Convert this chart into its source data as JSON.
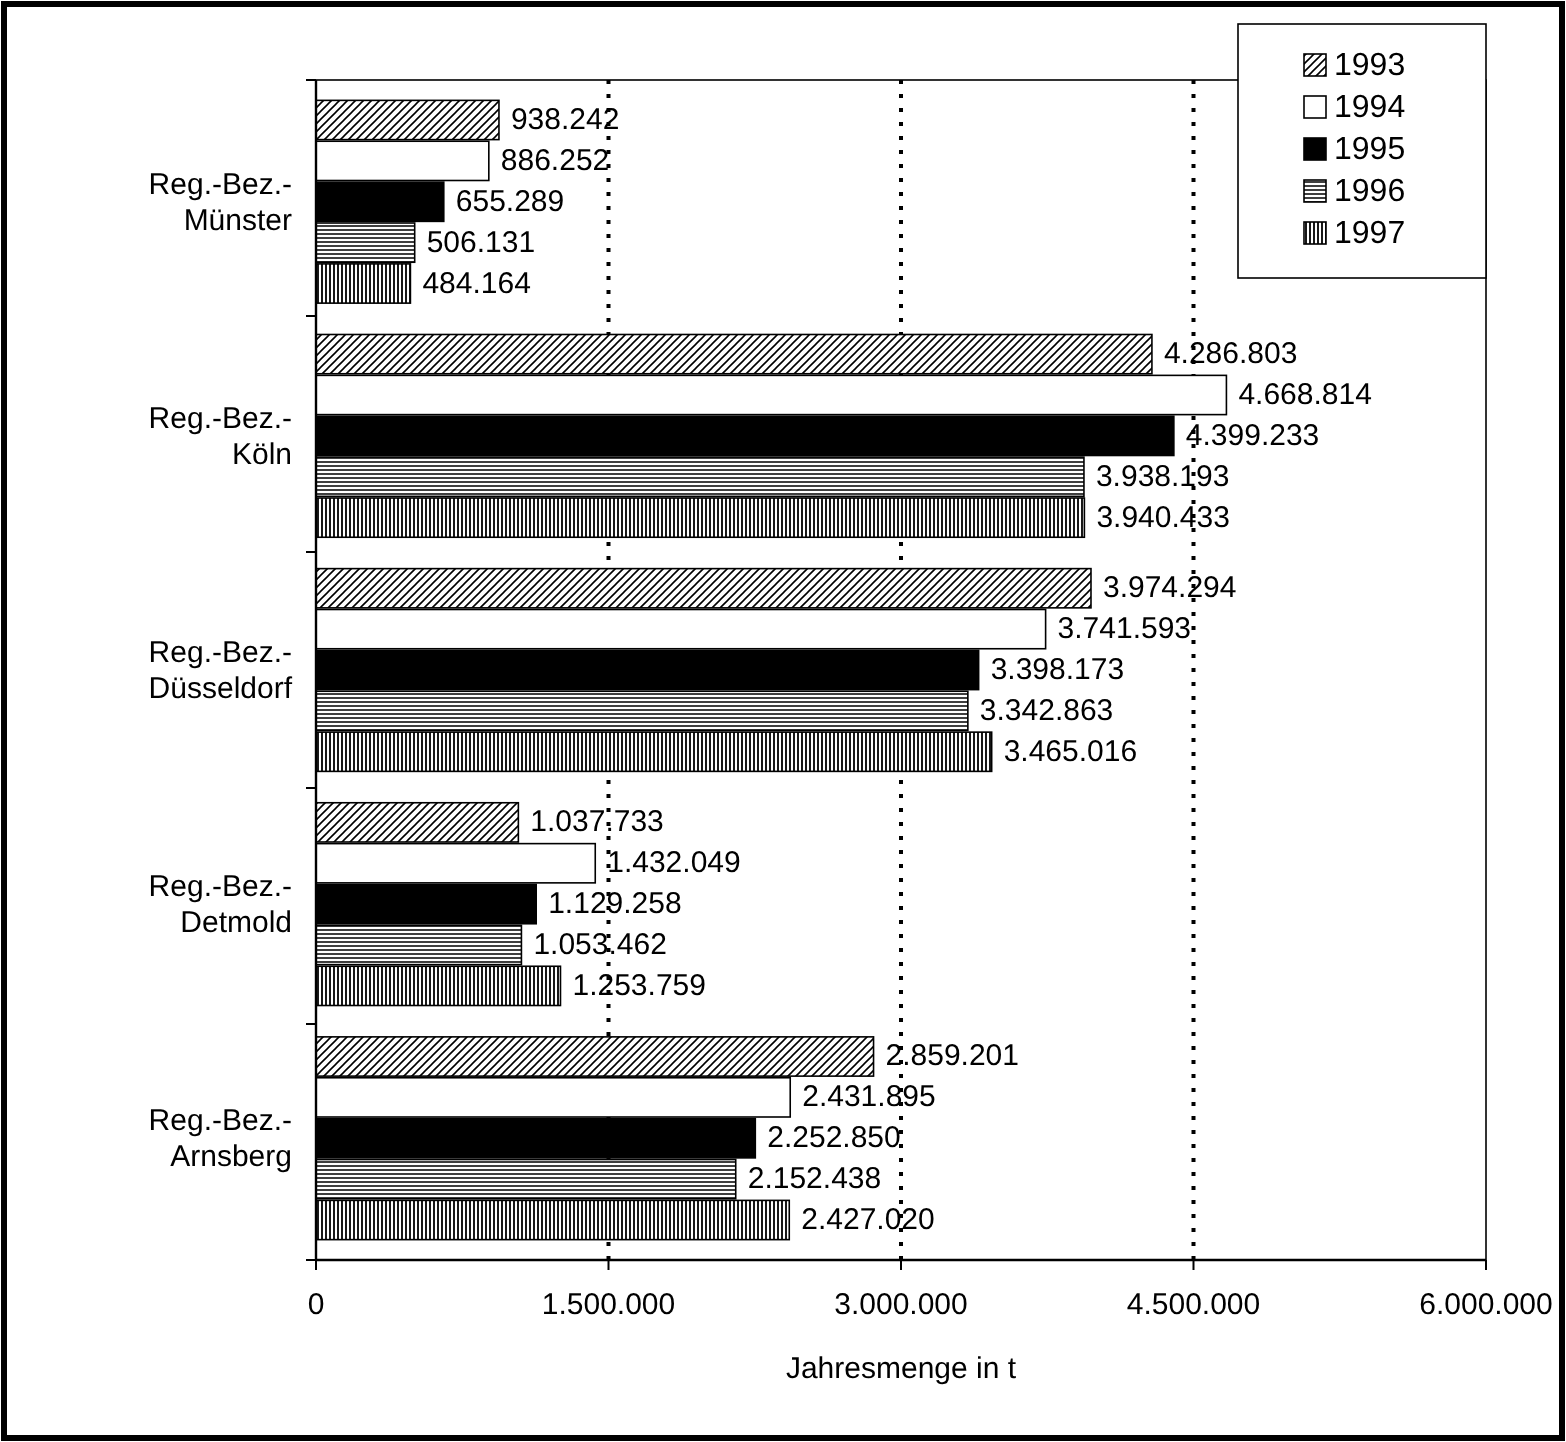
{
  "chart_data": {
    "type": "bar",
    "orientation": "horizontal",
    "xlabel": "Jahresmenge in t",
    "categories": [
      "Reg.-Bez.-\nMünster",
      "Reg.-Bez.-\nKöln",
      "Reg.-Bez.-\nDüsseldorf",
      "Reg.-Bez.-\nDetmold",
      "Reg.-Bez.-\nArnsberg"
    ],
    "series": [
      {
        "name": "1993",
        "color": "#000000",
        "values": [
          938242,
          4286803,
          3974294,
          1037733,
          2859201
        ],
        "value_labels": [
          "938.242",
          "4.286.803",
          "3.974.294",
          "1.037.733",
          "2.859.201"
        ]
      },
      {
        "name": "1994",
        "color": "#ffffff",
        "values": [
          886252,
          4668814,
          3741593,
          1432049,
          2431895
        ],
        "value_labels": [
          "886.252",
          "4.668.814",
          "3.741.593",
          "1.432.049",
          "2.431.895"
        ]
      },
      {
        "name": "1995",
        "color": "#000000",
        "values": [
          655289,
          4399233,
          3398173,
          1129258,
          2252850
        ],
        "value_labels": [
          "655.289",
          "4.399.233",
          "3.398.173",
          "1.129.258",
          "2.252.850"
        ]
      },
      {
        "name": "1996",
        "color": "#000000",
        "values": [
          506131,
          3938193,
          3342863,
          1053462,
          2152438
        ],
        "value_labels": [
          "506.131",
          "3.938.193",
          "3.342.863",
          "1.053.462",
          "2.152.438"
        ]
      },
      {
        "name": "1997",
        "color": "#000000",
        "values": [
          484164,
          3940433,
          3465016,
          1253759,
          2427020
        ],
        "value_labels": [
          "484.164",
          "3.940.433",
          "3.465.016",
          "1.253.759",
          "2.427.020"
        ]
      }
    ],
    "xlim": [
      0,
      6000000
    ],
    "xticks": [
      0,
      {
        "value": 1500000,
        "label": "1.500.000"
      },
      {
        "value": 3000000,
        "label": "3.000.000"
      },
      {
        "value": 4500000,
        "label": "4.500.000"
      },
      {
        "value": 6000000,
        "label": "6.000.000"
      }
    ],
    "grid": "x",
    "legend": "top right"
  }
}
